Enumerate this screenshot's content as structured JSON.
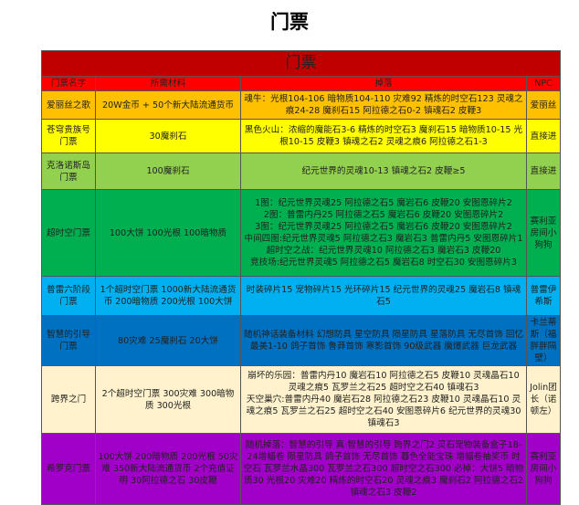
{
  "title": "门票",
  "table_title": "门票",
  "headers": [
    "门票名字",
    "所需材料",
    "掉落",
    "NPC"
  ],
  "rows": [
    {
      "name": "爱丽丝之歌",
      "materials": "20W金币 + 50个新大陆流通货币",
      "drops": "魂牛：光根104-106 暗物质104-110 灾难92 精炼的时空石123 灵魂之痕24-28 魔刹石15 阿拉德之石0-2 镇魂石2 皮鞭3",
      "npc": "爱丽丝",
      "color": "#ffc000"
    },
    {
      "name": "苍穹贵族号门票",
      "materials": "30魔刹石",
      "drops": "黑色火山：浓缩的魔能石3-6 精炼的时空石3 魔刹石15 暗物质10-15 光根10-15 皮鞭3 镇魂之石2 灵魂之痕6 阿拉德之石1-3",
      "npc": "直接进",
      "color": "#ffff00"
    },
    {
      "name": "克洛诺斯岛门票",
      "materials": "100魔刹石",
      "drops": "纪元世界的灵魂10-13 镇魂之石2 皮鞭≥5",
      "npc": "直接进",
      "color": "#92d050"
    },
    {
      "name": "超时空门票",
      "materials": "100大饼 100光根 100暗物质",
      "drops": "1图：纪元世界灵魂25 阿拉德之石5 魔岩石6 皮鞭20 安图恩碎片2\n2图：普雷内丹25 阿拉德之石5 魔岩石6 皮鞭20 安图恩碎片2\n3图：纪元世界灵魂25 阿拉德之石5 魔岩石6 皮鞭20 安图恩碎片2\n中间四图:纪元世界灵魂5 阿拉德之石3 魔岩石3 普雷内丹5 安图恩碎片1\n超时空之战：纪元世界灵魂10 阿拉德之石3 魔岩石3 皮鞭20\n竞技场:纪元世界灵魂5 阿拉德之石5 魔岩石8 时空石30 安图恩碎片3",
      "npc": "赛利亚房间小狗狗",
      "color": "#00b050"
    },
    {
      "name": "普雷六阶段门票",
      "materials": "1个超时空门票 1000新大陆流通货币 200暗物质 200光根 100大饼",
      "drops": "时装碎片15 宠物碎片15 光环碎片15 纪元世界的灵魂25 魔岩石8 镇魂石5",
      "npc": "普雷伊希斯",
      "color": "#00b0f0"
    },
    {
      "name": "智慧的引导门票",
      "materials": "80灾难 25魔刹石 20大饼",
      "drops": "随机神话装备材料 幻想防具 星空防具 陨星防具 星落防具 无尽首饰 回忆最美1-10 鸽子首饰 鲁莽首饰 寒影首饰 90级武器 魔爆武器 巨龙武器",
      "npc": "卡兰蒂斯（福胖胖隔壁）",
      "color": "#0070c0"
    },
    {
      "name": "跨界之门",
      "materials": "2个超时空门票 300灾难 300暗物质 300光根",
      "drops": "崩坏的乐园：普雷内丹10 魔岩石10 阿拉德之石5 皮鞭10 灵魂晶石10 灵魂之痕5 瓦罗兰之石25 超时空之石40 镇魂石3\n天空巢穴:普雷内丹40 魔岩石28 阿拉德之石23 皮鞭10 灵魂晶石10 灵魂之痕5 瓦罗兰之石25 超时空之石40 安图恩碎片6 纪元世界的灵魂30 镇魂石3",
      "npc": "Jolin团长（诺顿左）",
      "color": "#fff2cc"
    },
    {
      "name": "希罗克门票",
      "materials": "100大饼 200暗物质 200光根 50灾难 350新大陆流通货币 2个充值证明 30阿拉德之石 30皮鞭",
      "drops": "随机掉落：智慧的引导 真·智慧的引导 跨界之门2 灵石宠物装备盒子18-24增幅卷 陨星防具 鸽子首饰 无尽首饰 暮色全能宝珠 增幅卷抽奖币 时空石 瓦罗兰水晶300 瓦罗兰之石300 超时空之石300 必掉：大饼5 暗物质30 光根20 灾难20 精炼的时空石20 灵魂之痕3 魔刹石2 阿拉德之石2 镇魂之石3 皮鞭2",
      "npc": "赛利亚房间小狗狗",
      "color": "#a100c8"
    }
  ],
  "colors": {
    "title_band": "#c00000",
    "header": "#ff0000"
  }
}
